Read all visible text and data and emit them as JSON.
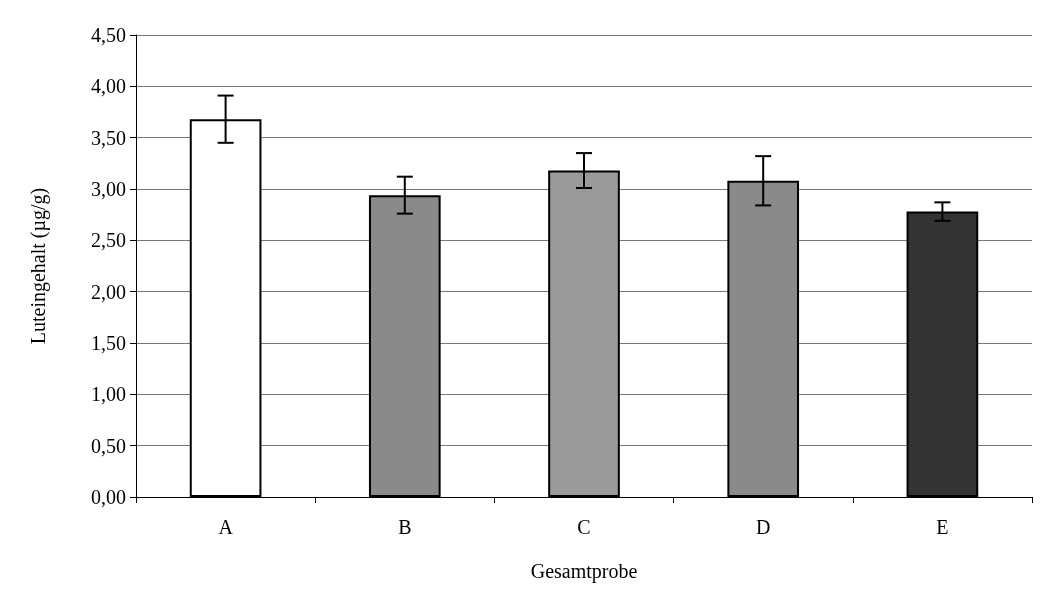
{
  "chart_data": {
    "type": "bar",
    "xlabel": "Gesamtprobe",
    "ylabel": "Luteingehalt (µg/g)",
    "categories": [
      "A",
      "B",
      "C",
      "D",
      "E"
    ],
    "values": [
      3.68,
      2.94,
      3.18,
      3.08,
      2.78
    ],
    "errors": [
      0.23,
      0.18,
      0.17,
      0.24,
      0.09
    ],
    "colors": [
      "#ffffff",
      "#8a8a8a",
      "#9a9a9a",
      "#8a8a8a",
      "#333333"
    ],
    "ylim": [
      0,
      4.5
    ],
    "yticks": [
      {
        "value": 0,
        "label": "0,00"
      },
      {
        "value": 0.5,
        "label": "0,50"
      },
      {
        "value": 1,
        "label": "1,00"
      },
      {
        "value": 1.5,
        "label": "1,50"
      },
      {
        "value": 2,
        "label": "2,00"
      },
      {
        "value": 2.5,
        "label": "2,50"
      },
      {
        "value": 3,
        "label": "3,00"
      },
      {
        "value": 3.5,
        "label": "3,50"
      },
      {
        "value": 4,
        "label": "4,00"
      },
      {
        "value": 4.5,
        "label": "4,50"
      }
    ],
    "grid": "y"
  }
}
